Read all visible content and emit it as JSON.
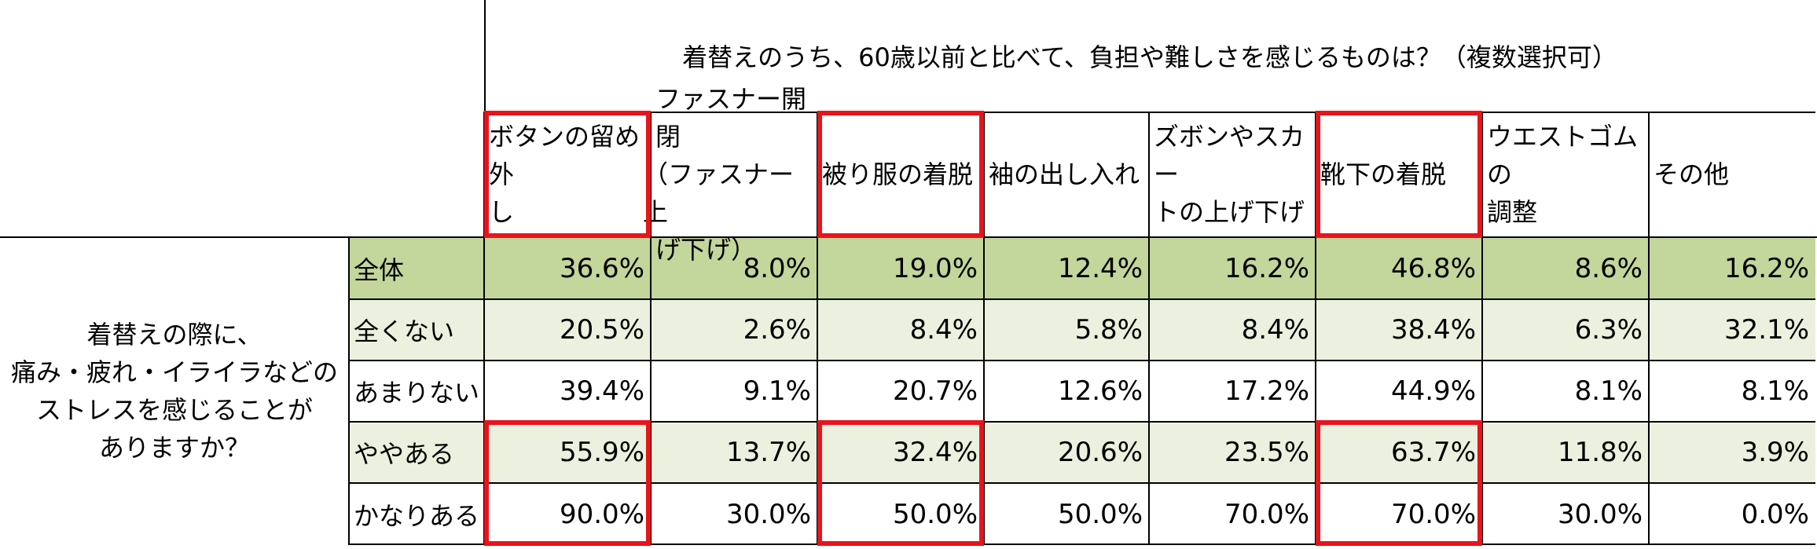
{
  "chart_data": {
    "type": "table",
    "title": "着替えのうち、60歳以前と比べて、負担や難しさを感じるものは？（複数選択可）",
    "row_header": [
      "着替えの際に、",
      "痛み・疲れ・イライラなどの",
      "ストレスを感じることが",
      "ありますか？"
    ],
    "columns": [
      [
        "ボタンの留め外",
        "し"
      ],
      [
        "ファスナー開閉",
        "（ファスナー上",
        "げ下げ）"
      ],
      [
        "被り服の着脱"
      ],
      [
        "袖の出し入れ"
      ],
      [
        "ズボンやスカー",
        "トの上げ下げ"
      ],
      [
        "靴下の着脱"
      ],
      [
        "ウエストゴムの",
        "調整"
      ],
      [
        "その他"
      ]
    ],
    "rows": [
      {
        "label": "全体",
        "values": [
          "36.6%",
          "8.0%",
          "19.0%",
          "12.4%",
          "16.2%",
          "46.8%",
          "8.6%",
          "16.2%"
        ]
      },
      {
        "label": "全くない",
        "values": [
          "20.5%",
          "2.6%",
          "8.4%",
          "5.8%",
          "8.4%",
          "38.4%",
          "6.3%",
          "32.1%"
        ]
      },
      {
        "label": "あまりない",
        "values": [
          "39.4%",
          "9.1%",
          "20.7%",
          "12.6%",
          "17.2%",
          "44.9%",
          "8.1%",
          "8.1%"
        ]
      },
      {
        "label": "ややある",
        "values": [
          "55.9%",
          "13.7%",
          "32.4%",
          "20.6%",
          "23.5%",
          "63.7%",
          "11.8%",
          "3.9%"
        ]
      },
      {
        "label": "かなりある",
        "values": [
          "90.0%",
          "30.0%",
          "50.0%",
          "50.0%",
          "70.0%",
          "70.0%",
          "30.0%",
          "0.0%"
        ]
      }
    ],
    "highlighted_columns": [
      0,
      2,
      5
    ],
    "highlighted_rows": [
      3,
      4
    ]
  },
  "colors": {
    "total_row": "#c3d69b",
    "alt_row": "#ebf1de",
    "white_row": "#ffffff",
    "highlight": "#e8141c",
    "grid": "#000000"
  }
}
